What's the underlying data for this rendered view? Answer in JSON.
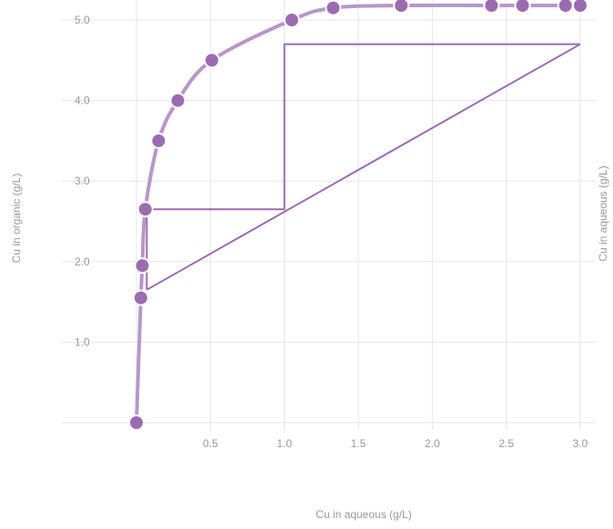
{
  "chart_data": {
    "type": "line",
    "xlabel": "Cu in aqueous (g/L)",
    "ylabel": "Cu in organic (g/L)",
    "ylabel_right": "Cu in aqueous (g/L)",
    "xlim": [
      0,
      3.0
    ],
    "ylim": [
      0,
      5.0
    ],
    "grid": true,
    "x_ticks": [
      "0.5",
      "1.0",
      "1.5",
      "2.0",
      "2.5",
      "3.0"
    ],
    "y_ticks": [
      "1.0",
      "2.0",
      "3.0",
      "4.0",
      "5.0"
    ],
    "colors": {
      "series": "#9b6bb0",
      "grid": "#e6e6e6",
      "text": "#999999"
    },
    "series": [
      {
        "kind": "equilibrium-curve",
        "x": [
          0.0,
          0.03,
          0.04,
          0.06,
          0.15,
          0.28,
          0.51,
          1.05,
          1.33,
          1.79,
          2.4,
          2.61,
          2.9,
          3.0
        ],
        "y": [
          0.0,
          1.55,
          1.95,
          2.65,
          3.5,
          4.0,
          4.5,
          5.0,
          5.15,
          5.3,
          5.4,
          5.42,
          5.5,
          5.52
        ]
      },
      {
        "kind": "operating-line",
        "x": [
          0.07,
          3.0
        ],
        "y": [
          1.65,
          4.7
        ]
      },
      {
        "kind": "stage-steps",
        "x": [
          3.0,
          1.0,
          1.0,
          0.07,
          0.07
        ],
        "y": [
          4.7,
          4.7,
          2.65,
          2.65,
          1.65
        ]
      }
    ]
  }
}
